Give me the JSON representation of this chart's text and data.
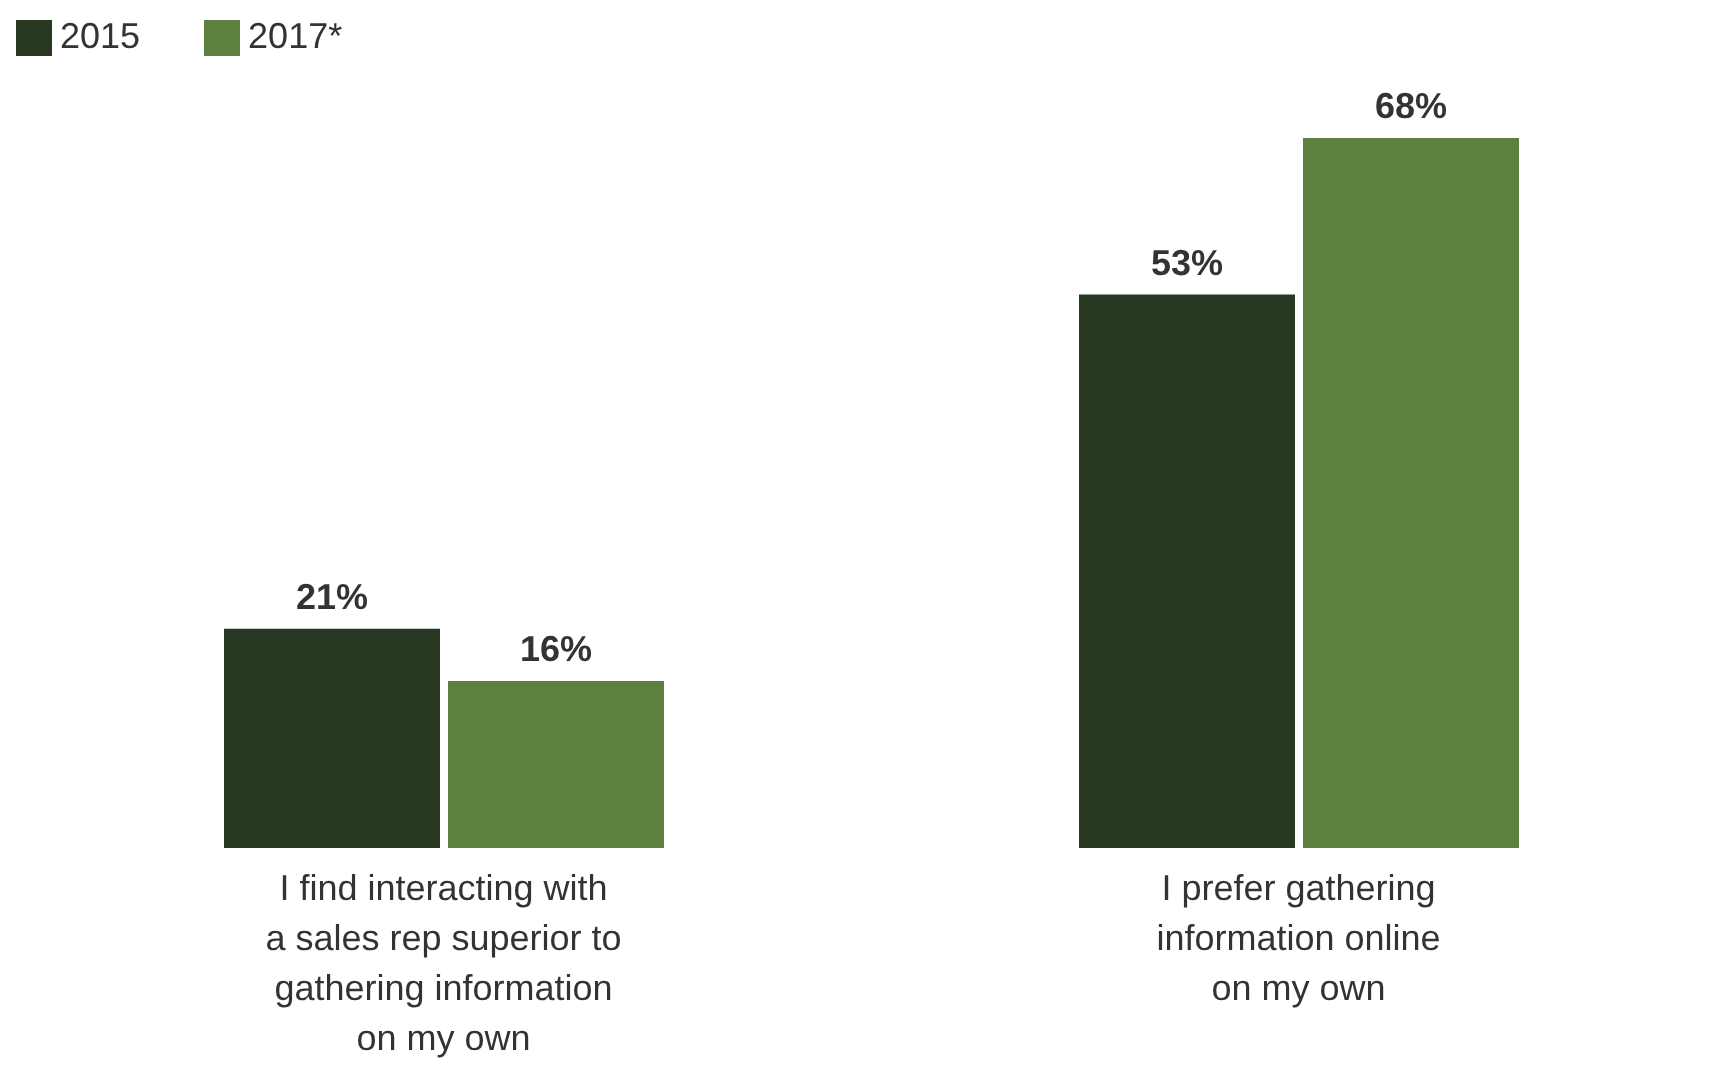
{
  "chart_data": {
    "type": "bar",
    "categories": [
      "I find interacting with a sales rep superior to gathering information on my own",
      "I prefer gathering information online on my own"
    ],
    "series": [
      {
        "name": "2015",
        "color": "#283823",
        "values": [
          21,
          53
        ],
        "value_labels": [
          "21%",
          "53%"
        ]
      },
      {
        "name": "2017*",
        "color": "#5b8040",
        "values": [
          16,
          68
        ],
        "value_labels": [
          "16%",
          "68%"
        ]
      }
    ],
    "legend": "top left"
  }
}
